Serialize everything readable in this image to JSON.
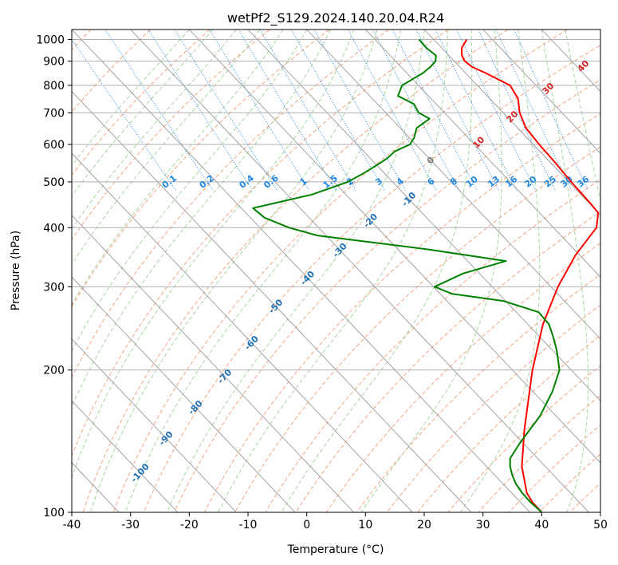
{
  "chart_data": {
    "type": "line",
    "title": "wetPf2_S129.2024.140.20.04.R24",
    "xlabel": "Temperature (°C)",
    "ylabel": "Pressure (hPa)",
    "xlim": [
      -40,
      50
    ],
    "ylim": [
      1050,
      100
    ],
    "y_scale": "log",
    "grid": true,
    "x_ticks": [
      -40,
      -30,
      -20,
      -10,
      0,
      10,
      20,
      30,
      40,
      50
    ],
    "y_ticks": [
      100,
      200,
      300,
      400,
      500,
      600,
      700,
      800,
      900,
      1000
    ],
    "colors": {
      "temperature": "#ff0000",
      "dewpoint": "#008000",
      "isotherm": "#9a9a9a",
      "dry_adiabat": "#f4a582",
      "moist_adiabat": "#a8d5a2",
      "mixing_ratio": "#1e88e5",
      "isotherm_label": "#1f6fb2",
      "mixing_label": "#1e88e5",
      "moist_label": "#d62728"
    },
    "series": [
      {
        "color": "#ff0000",
        "p": [
          1000,
          960,
          925,
          900,
          875,
          850,
          800,
          750,
          700,
          650,
          600,
          550,
          500,
          450,
          430,
          400,
          350,
          300,
          250,
          200,
          150,
          125,
          110,
          105,
          100
        ],
        "t": [
          25.6,
          23.4,
          22.2,
          21.8,
          22.1,
          23.4,
          25.6,
          24.8,
          22.8,
          21.4,
          21.0,
          20.8,
          20.4,
          20.2,
          20.0,
          17.3,
          9.3,
          1.2,
          -7.4,
          -16.6,
          -27.5,
          -34.0,
          -37.4,
          -38.0,
          -38.0
        ]
      },
      {
        "color": "#008000",
        "p": [
          1000,
          960,
          925,
          900,
          875,
          850,
          800,
          760,
          730,
          700,
          680,
          650,
          620,
          600,
          580,
          560,
          540,
          520,
          500,
          470,
          440,
          420,
          400,
          385,
          360,
          340,
          320,
          300,
          290,
          280,
          265,
          250,
          235,
          220,
          200,
          180,
          160,
          140,
          130,
          125,
          120,
          115,
          110,
          105,
          100
        ],
        "t": [
          17.5,
          17.4,
          17.8,
          16.8,
          15.0,
          12.8,
          7.2,
          4.8,
          6.2,
          5.6,
          6.5,
          2.8,
          0.8,
          -1.0,
          -4.7,
          -7.2,
          -10.4,
          -13.8,
          -17.6,
          -25.8,
          -38.0,
          -37.6,
          -35.0,
          -31.5,
          -15.0,
          -3.5,
          -12.8,
          -19.8,
          -18.0,
          -10.4,
          -6.2,
          -6.4,
          -7.7,
          -9.3,
          -12.0,
          -16.7,
          -22.7,
          -30.6,
          -34.7,
          -36.0,
          -37.0,
          -37.8,
          -38.2,
          -38.3,
          -38.0
        ]
      }
    ],
    "isotherm_labels": [
      "-100",
      "-90",
      "-80",
      "-70",
      "-60",
      "-50",
      "-40",
      "-30",
      "-20",
      "-10",
      "0",
      "10",
      "20",
      "30",
      "40"
    ],
    "mixing_ratio_labels": [
      "0.1",
      "0.2",
      "0.4",
      "0.6",
      "1",
      "1.5",
      "2",
      "3",
      "4",
      "6",
      "8",
      "10",
      "13",
      "16",
      "20",
      "25",
      "30",
      "36"
    ]
  }
}
